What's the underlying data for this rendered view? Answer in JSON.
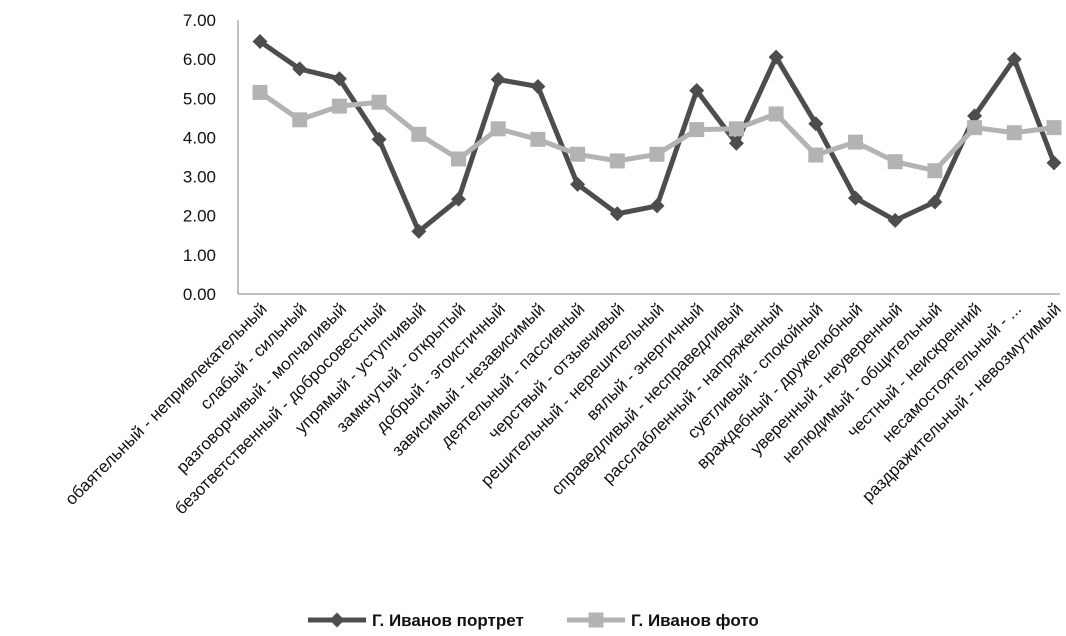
{
  "chart_data": {
    "type": "line",
    "categories": [
      "обаятельный - непривлекательный",
      "слабый - сильный",
      "разговорчивый - молчаливый",
      "безответственный - добросовестный",
      "упрямый - уступчивый",
      "замкнутый - открытый",
      "добрый - эгоистичный",
      "зависимый - независимый",
      "деятельный - пассивный",
      "черствый - отзывчивый",
      "решительный - нерешительный",
      "вялый - энергичный",
      "справедливый - несправедливый",
      "расслабленный - напряженный",
      "суетливый - спокойный",
      "враждебный - дружелюбный",
      "уверенный - неуверенный",
      "нелюдимый - общительный",
      "честный - неискренний",
      "несамостоятельный - ...",
      "раздражительный - невозмутимый"
    ],
    "series": [
      {
        "name": "Г. Иванов портрет",
        "color": "#4d4d4d",
        "marker": "diamond",
        "values": [
          6.45,
          5.75,
          5.5,
          3.95,
          1.6,
          2.42,
          5.48,
          5.3,
          2.8,
          2.05,
          2.25,
          5.2,
          3.85,
          6.05,
          4.35,
          2.45,
          1.88,
          2.35,
          4.55,
          6.0,
          3.35
        ]
      },
      {
        "name": "Г. Иванов фото",
        "color": "#b3b3b3",
        "marker": "square",
        "values": [
          5.15,
          4.45,
          4.8,
          4.9,
          4.08,
          3.45,
          4.22,
          3.95,
          3.57,
          3.4,
          3.57,
          4.2,
          4.22,
          4.6,
          3.55,
          3.88,
          3.38,
          3.15,
          4.25,
          4.12,
          4.25
        ]
      }
    ],
    "y_ticks": [
      "0.00",
      "1.00",
      "2.00",
      "3.00",
      "4.00",
      "5.00",
      "6.00",
      "7.00"
    ],
    "ylim": [
      0,
      7
    ],
    "grid": false,
    "legend_position": "bottom",
    "title": "",
    "xlabel": "",
    "ylabel": ""
  }
}
